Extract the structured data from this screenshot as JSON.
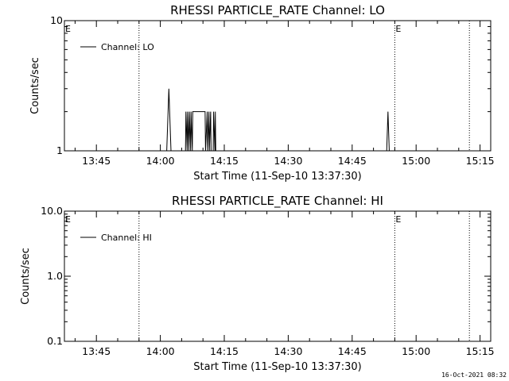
{
  "chart_data": [
    {
      "type": "line",
      "title": "RHESSI PARTICLE_RATE Channel: LO",
      "xlabel": "Start Time (11-Sep-10 13:37:30)",
      "ylabel": "Counts/sec",
      "scale": "log",
      "ylim": [
        1,
        10
      ],
      "xlim": [
        "13:37:30",
        "15:17:30"
      ],
      "x_ticks": [
        "13:45",
        "14:00",
        "14:15",
        "14:30",
        "14:45",
        "15:00",
        "15:15"
      ],
      "y_ticks": [
        "1",
        "10"
      ],
      "legend": "Channel: LO",
      "legend_position": "top-left",
      "event_markers": [
        {
          "time": "13:37:30",
          "label": "E"
        },
        {
          "time": "13:55:00",
          "label": ""
        },
        {
          "time": "14:55:00",
          "label": "E"
        },
        {
          "time": "15:12:30",
          "label": ""
        }
      ],
      "series": [
        {
          "x": [
            "13:37:30",
            "14:01:30",
            "14:02:00",
            "14:02:30",
            "14:03:00",
            "14:05:54",
            "14:06:00",
            "14:06:18",
            "14:06:24",
            "14:06:42",
            "14:06:48",
            "14:07:06",
            "14:07:12",
            "14:07:30",
            "14:07:36",
            "14:08:00",
            "14:10:30",
            "14:10:36",
            "14:11:00",
            "14:11:06",
            "14:11:24",
            "14:11:30",
            "14:11:48",
            "14:11:54",
            "14:12:24",
            "14:12:30",
            "14:12:48",
            "14:12:54",
            "14:13:00",
            "14:53:06",
            "14:53:24",
            "14:53:42",
            "15:17:30"
          ],
          "values": [
            1,
            1,
            3,
            1,
            1,
            1,
            2,
            1,
            2,
            1,
            2,
            1,
            2,
            1,
            2,
            2,
            2,
            1,
            2,
            1,
            2,
            1,
            2,
            1,
            1,
            2,
            1,
            2,
            1,
            1,
            2,
            1,
            1
          ]
        }
      ]
    },
    {
      "type": "line",
      "title": "RHESSI PARTICLE_RATE Channel: HI",
      "xlabel": "Start Time (11-Sep-10 13:37:30)",
      "ylabel": "Counts/sec",
      "scale": "log",
      "ylim": [
        0.1,
        10
      ],
      "xlim": [
        "13:37:30",
        "15:17:30"
      ],
      "x_ticks": [
        "13:45",
        "14:00",
        "14:15",
        "14:30",
        "14:45",
        "15:00",
        "15:15"
      ],
      "y_ticks": [
        "0.1",
        "1.0",
        "10.0"
      ],
      "legend": "Channel: HI",
      "legend_position": "top-left",
      "event_markers": [
        {
          "time": "13:37:30",
          "label": "E"
        },
        {
          "time": "13:55:00",
          "label": ""
        },
        {
          "time": "14:55:00",
          "label": "E"
        },
        {
          "time": "15:12:30",
          "label": ""
        }
      ],
      "series": []
    }
  ],
  "footer": {
    "timestamp": "16-Oct-2021 08:32"
  }
}
